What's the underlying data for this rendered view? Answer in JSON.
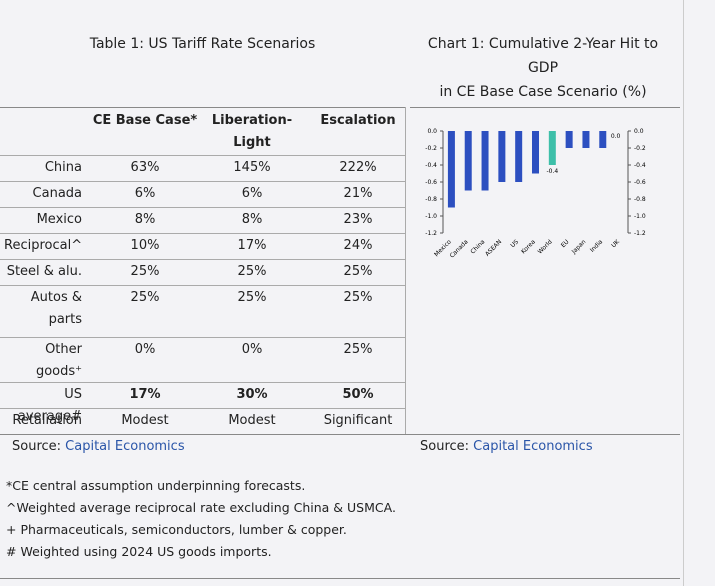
{
  "table": {
    "title": "Table 1: US Tariff Rate Scenarios",
    "headers": [
      "CE Base Case*",
      "Liberation-Light",
      "Escalation"
    ],
    "rows": [
      [
        "China",
        "63%",
        "145%",
        "222%"
      ],
      [
        "Canada",
        "6%",
        "6%",
        "21%"
      ],
      [
        "Mexico",
        "8%",
        "8%",
        "23%"
      ],
      [
        "Reciprocal^",
        "10%",
        "17%",
        "24%"
      ],
      [
        "Steel & alu.",
        "25%",
        "25%",
        "25%"
      ],
      [
        "Autos & parts",
        "25%",
        "25%",
        "25%"
      ],
      [
        "Other goods⁺",
        "0%",
        "0%",
        "25%"
      ],
      [
        "US average#",
        "17%",
        "30%",
        "50%"
      ],
      [
        "Retaliation",
        "Modest",
        "Modest",
        "Significant"
      ]
    ],
    "source_prefix": "Source:",
    "source_name": "Capital Economics"
  },
  "chart_data": {
    "type": "bar",
    "title_lines": [
      "Chart 1: Cumulative 2-Year Hit to",
      "GDP",
      "in CE Base Case Scenario (%)"
    ],
    "categories": [
      "Mexico",
      "Canada",
      "China",
      "ASEAN",
      "US",
      "Korea",
      "World",
      "EU",
      "Japan",
      "India",
      "UK"
    ],
    "values": [
      -0.9,
      -0.7,
      -0.7,
      -0.6,
      -0.6,
      -0.5,
      -0.4,
      -0.2,
      -0.2,
      -0.2,
      0
    ],
    "value_labels": [
      null,
      null,
      null,
      null,
      null,
      null,
      "-0.4",
      null,
      null,
      null,
      "0.0"
    ],
    "colors": [
      "#2c4fc0",
      "#2c4fc0",
      "#2c4fc0",
      "#2c4fc0",
      "#2c4fc0",
      "#2c4fc0",
      "#3dbfa9",
      "#2c4fc0",
      "#2c4fc0",
      "#2c4fc0",
      "#2c4fc0"
    ],
    "ylim": [
      0,
      -1.2
    ],
    "yticks": [
      {
        "value": 0,
        "label": "0.0"
      },
      -0.2,
      -0.4,
      -0.6,
      -0.8,
      {
        "value": -1,
        "label": "-1.0"
      },
      -1.2
    ],
    "source_prefix": "Source:",
    "source_name": "Capital Economics"
  },
  "notes": [
    "*CE central assumption underpinning forecasts.",
    "^Weighted average reciprocal rate excluding China & USMCA.",
    "+ Pharmaceuticals, semiconductors, lumber & copper.",
    "# Weighted using 2024 US goods imports."
  ]
}
